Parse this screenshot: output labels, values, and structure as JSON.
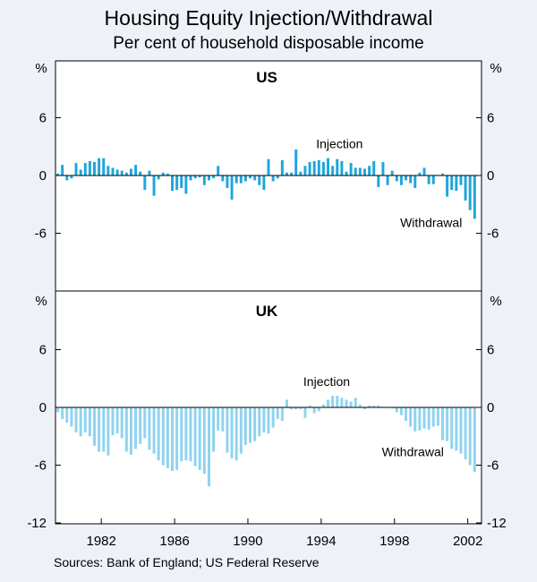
{
  "title": "Housing Equity Injection/Withdrawal",
  "subtitle": "Per cent of household disposable income",
  "source": "Sources: Bank of England; US Federal Reserve",
  "colors": {
    "us_bar": "#1ea6dc",
    "uk_bar": "#8fd3ef",
    "background": "#eef2f8",
    "axis": "#000000"
  },
  "chart_data": [
    {
      "type": "bar",
      "panel": "US",
      "title": "US",
      "unit_label": "%",
      "ylim": [
        -12,
        12
      ],
      "yticks": [
        6,
        0,
        -6
      ],
      "ytick_labels": [
        "6",
        "0",
        "-6"
      ],
      "xlim": [
        1979.5,
        2002.75
      ],
      "xticks": [
        1982,
        1986,
        1990,
        1994,
        1998,
        2002
      ],
      "xtick_labels": [
        "1982",
        "1986",
        "1990",
        "1994",
        "1998",
        "2002"
      ],
      "annotations": [
        {
          "text": "Injection",
          "x": 1995.0,
          "y": 3.3
        },
        {
          "text": "Withdrawal",
          "x": 2000.0,
          "y": -4.9
        }
      ],
      "x": [
        1979.625,
        1979.875,
        1980.125,
        1980.375,
        1980.625,
        1980.875,
        1981.125,
        1981.375,
        1981.625,
        1981.875,
        1982.125,
        1982.375,
        1982.625,
        1982.875,
        1983.125,
        1983.375,
        1983.625,
        1983.875,
        1984.125,
        1984.375,
        1984.625,
        1984.875,
        1985.125,
        1985.375,
        1985.625,
        1985.875,
        1986.125,
        1986.375,
        1986.625,
        1986.875,
        1987.125,
        1987.375,
        1987.625,
        1987.875,
        1988.125,
        1988.375,
        1988.625,
        1988.875,
        1989.125,
        1989.375,
        1989.625,
        1989.875,
        1990.125,
        1990.375,
        1990.625,
        1990.875,
        1991.125,
        1991.375,
        1991.625,
        1991.875,
        1992.125,
        1992.375,
        1992.625,
        1992.875,
        1993.125,
        1993.375,
        1993.625,
        1993.875,
        1994.125,
        1994.375,
        1994.625,
        1994.875,
        1995.125,
        1995.375,
        1995.625,
        1995.875,
        1996.125,
        1996.375,
        1996.625,
        1996.875,
        1997.125,
        1997.375,
        1997.625,
        1997.875,
        1998.125,
        1998.375,
        1998.625,
        1998.875,
        1999.125,
        1999.375,
        1999.625,
        1999.875,
        2000.125,
        2000.375,
        2000.625,
        2000.875,
        2001.125,
        2001.375,
        2001.625,
        2001.875,
        2002.125,
        2002.375
      ],
      "values": [
        0.2,
        1.1,
        -0.5,
        -0.3,
        1.3,
        0.6,
        1.3,
        1.5,
        1.4,
        1.8,
        1.8,
        1.0,
        0.8,
        0.6,
        0.5,
        0.3,
        0.7,
        1.1,
        0.4,
        -1.5,
        0.5,
        -2.1,
        -0.4,
        0.3,
        0.2,
        -1.6,
        -1.5,
        -1.3,
        -1.9,
        -0.5,
        -0.3,
        -0.2,
        -1.0,
        -0.5,
        -0.3,
        1.0,
        -0.6,
        -1.3,
        -2.5,
        -0.8,
        -0.8,
        -0.6,
        -0.3,
        -0.5,
        -1.0,
        -1.5,
        1.7,
        -0.6,
        -0.3,
        1.6,
        0.3,
        0.3,
        2.7,
        0.4,
        1.0,
        1.4,
        1.5,
        1.6,
        1.4,
        1.8,
        1.0,
        1.7,
        1.5,
        0.4,
        1.3,
        0.8,
        0.8,
        0.7,
        1.0,
        1.5,
        -1.2,
        1.4,
        -1.0,
        0.5,
        -0.6,
        -1.0,
        -0.5,
        -0.8,
        -1.3,
        0.3,
        0.8,
        -0.9,
        -0.9,
        0.0,
        0.2,
        -2.2,
        -1.5,
        -1.6,
        -1.0,
        -2.6,
        -3.6,
        -4.5
      ]
    },
    {
      "type": "bar",
      "panel": "UK",
      "title": "UK",
      "unit_label": "%",
      "ylim": [
        -12,
        12
      ],
      "yticks": [
        6,
        0,
        -6,
        -12
      ],
      "ytick_labels": [
        "6",
        "0",
        "-6",
        "-12"
      ],
      "xlim": [
        1979.5,
        2002.75
      ],
      "xticks": [
        1982,
        1986,
        1990,
        1994,
        1998,
        2002
      ],
      "xtick_labels": [
        "1982",
        "1986",
        "1990",
        "1994",
        "1998",
        "2002"
      ],
      "annotations": [
        {
          "text": "Injection",
          "x": 1994.3,
          "y": 2.7
        },
        {
          "text": "Withdrawal",
          "x": 1999.0,
          "y": -4.6
        }
      ],
      "x": [
        1979.625,
        1979.875,
        1980.125,
        1980.375,
        1980.625,
        1980.875,
        1981.125,
        1981.375,
        1981.625,
        1981.875,
        1982.125,
        1982.375,
        1982.625,
        1982.875,
        1983.125,
        1983.375,
        1983.625,
        1983.875,
        1984.125,
        1984.375,
        1984.625,
        1984.875,
        1985.125,
        1985.375,
        1985.625,
        1985.875,
        1986.125,
        1986.375,
        1986.625,
        1986.875,
        1987.125,
        1987.375,
        1987.625,
        1987.875,
        1988.125,
        1988.375,
        1988.625,
        1988.875,
        1989.125,
        1989.375,
        1989.625,
        1989.875,
        1990.125,
        1990.375,
        1990.625,
        1990.875,
        1991.125,
        1991.375,
        1991.625,
        1991.875,
        1992.125,
        1992.375,
        1992.625,
        1992.875,
        1993.125,
        1993.375,
        1993.625,
        1993.875,
        1994.125,
        1994.375,
        1994.625,
        1994.875,
        1995.125,
        1995.375,
        1995.625,
        1995.875,
        1996.125,
        1996.375,
        1996.625,
        1996.875,
        1997.125,
        1997.375,
        1997.625,
        1997.875,
        1998.125,
        1998.375,
        1998.625,
        1998.875,
        1999.125,
        1999.375,
        1999.625,
        1999.875,
        2000.125,
        2000.375,
        2000.625,
        2000.875,
        2001.125,
        2001.375,
        2001.625,
        2001.875,
        2002.125,
        2002.375
      ],
      "values": [
        -0.5,
        -1.2,
        -1.6,
        -2.0,
        -2.6,
        -3.0,
        -2.6,
        -3.0,
        -4.0,
        -4.6,
        -4.6,
        -5.0,
        -2.9,
        -2.7,
        -3.2,
        -4.6,
        -4.9,
        -4.3,
        -3.8,
        -3.2,
        -4.4,
        -4.8,
        -5.5,
        -6.0,
        -6.3,
        -6.6,
        -6.5,
        -5.6,
        -5.5,
        -5.6,
        -6.1,
        -6.5,
        -6.9,
        -8.2,
        -4.6,
        -2.4,
        -2.5,
        -4.7,
        -5.3,
        -5.5,
        -4.8,
        -3.9,
        -3.7,
        -3.5,
        -3.0,
        -2.6,
        -2.7,
        -2.1,
        -1.2,
        -1.4,
        0.8,
        -0.2,
        -0.2,
        -0.2,
        -1.1,
        0.2,
        -0.6,
        -0.4,
        0.3,
        0.8,
        1.2,
        1.2,
        1.0,
        0.8,
        0.6,
        1.0,
        0.3,
        -0.2,
        0.2,
        0.2,
        0.2,
        0.0,
        0.0,
        -0.1,
        -0.5,
        -0.8,
        -1.4,
        -2.0,
        -2.5,
        -2.4,
        -2.2,
        -2.3,
        -2.0,
        -1.9,
        -3.4,
        -3.5,
        -4.3,
        -4.5,
        -4.8,
        -5.4,
        -6.0,
        -6.7
      ]
    }
  ]
}
